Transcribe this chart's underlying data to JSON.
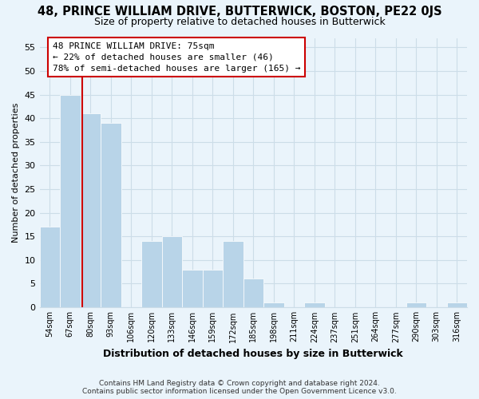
{
  "title": "48, PRINCE WILLIAM DRIVE, BUTTERWICK, BOSTON, PE22 0JS",
  "subtitle": "Size of property relative to detached houses in Butterwick",
  "xlabel": "Distribution of detached houses by size in Butterwick",
  "ylabel": "Number of detached properties",
  "footer_line1": "Contains HM Land Registry data © Crown copyright and database right 2024.",
  "footer_line2": "Contains public sector information licensed under the Open Government Licence v3.0.",
  "bin_labels": [
    "54sqm",
    "67sqm",
    "80sqm",
    "93sqm",
    "106sqm",
    "120sqm",
    "133sqm",
    "146sqm",
    "159sqm",
    "172sqm",
    "185sqm",
    "198sqm",
    "211sqm",
    "224sqm",
    "237sqm",
    "251sqm",
    "264sqm",
    "277sqm",
    "290sqm",
    "303sqm",
    "316sqm"
  ],
  "bar_heights": [
    17,
    45,
    41,
    39,
    0,
    14,
    15,
    8,
    8,
    14,
    6,
    1,
    0,
    1,
    0,
    0,
    0,
    0,
    1,
    0,
    1
  ],
  "bar_color": "#b8d4e8",
  "bar_edge_color": "white",
  "highlight_line_color": "#cc0000",
  "annotation_line1": "48 PRINCE WILLIAM DRIVE: 75sqm",
  "annotation_line2": "← 22% of detached houses are smaller (46)",
  "annotation_line3": "78% of semi-detached houses are larger (165) →",
  "ylim": [
    0,
    57
  ],
  "yticks": [
    0,
    5,
    10,
    15,
    20,
    25,
    30,
    35,
    40,
    45,
    50,
    55
  ],
  "grid_color": "#ccdde8",
  "bg_color": "#eaf4fb",
  "title_fontsize": 10.5,
  "subtitle_fontsize": 9,
  "xlabel_fontsize": 9,
  "ylabel_fontsize": 8
}
